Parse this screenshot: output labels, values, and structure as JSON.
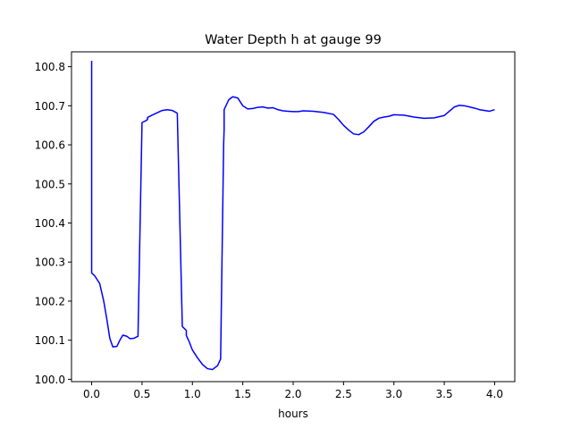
{
  "chart_data": {
    "type": "line",
    "title": "Water Depth h at gauge 99",
    "xlabel": "hours",
    "ylabel": "",
    "xlim": [
      -0.2,
      4.2
    ],
    "ylim": [
      99.994,
      100.838
    ],
    "xticks": [
      0.0,
      0.5,
      1.0,
      1.5,
      2.0,
      2.5,
      3.0,
      3.5,
      4.0
    ],
    "xtick_labels": [
      "0.0",
      "0.5",
      "1.0",
      "1.5",
      "2.0",
      "2.5",
      "3.0",
      "3.5",
      "4.0"
    ],
    "yticks": [
      100.0,
      100.1,
      100.2,
      100.3,
      100.4,
      100.5,
      100.6,
      100.7,
      100.8
    ],
    "ytick_labels": [
      "100.0",
      "100.1",
      "100.2",
      "100.3",
      "100.4",
      "100.5",
      "100.6",
      "100.7",
      "100.8"
    ],
    "grid": false,
    "legend": "none",
    "series": [
      {
        "color": "#0000ff",
        "x": [
          0.0,
          0.0,
          0.03,
          0.08,
          0.12,
          0.15,
          0.18,
          0.21,
          0.25,
          0.28,
          0.31,
          0.35,
          0.38,
          0.42,
          0.46,
          0.5,
          0.54,
          0.555,
          0.555,
          0.6,
          0.65,
          0.7,
          0.75,
          0.8,
          0.85,
          0.9,
          0.94,
          0.94,
          0.97,
          1.0,
          1.05,
          1.1,
          1.15,
          1.2,
          1.25,
          1.28,
          1.31,
          1.315,
          1.315,
          1.36,
          1.4,
          1.45,
          1.5,
          1.55,
          1.6,
          1.65,
          1.7,
          1.75,
          1.8,
          1.85,
          1.9,
          1.95,
          2.0,
          2.05,
          2.1,
          2.2,
          2.3,
          2.4,
          2.45,
          2.5,
          2.55,
          2.6,
          2.65,
          2.7,
          2.75,
          2.8,
          2.85,
          2.9,
          2.95,
          3.0,
          3.1,
          3.2,
          3.3,
          3.4,
          3.5,
          3.55,
          3.6,
          3.65,
          3.7,
          3.75,
          3.8,
          3.85,
          3.9,
          3.95,
          4.0
        ],
        "y": [
          100.815,
          100.272,
          100.265,
          100.245,
          100.2,
          100.155,
          100.105,
          100.083,
          100.084,
          100.1,
          100.113,
          100.11,
          100.104,
          100.105,
          100.11,
          100.657,
          100.662,
          100.665,
          100.67,
          100.676,
          100.682,
          100.688,
          100.69,
          100.688,
          100.681,
          100.135,
          100.125,
          100.112,
          100.095,
          100.075,
          100.055,
          100.038,
          100.027,
          100.025,
          100.035,
          100.052,
          100.6,
          100.64,
          100.69,
          100.715,
          100.723,
          100.72,
          100.7,
          100.692,
          100.693,
          100.696,
          100.697,
          100.694,
          100.695,
          100.69,
          100.687,
          100.686,
          100.685,
          100.685,
          100.687,
          100.686,
          100.683,
          100.678,
          100.665,
          100.65,
          100.638,
          100.628,
          100.626,
          100.633,
          100.646,
          100.66,
          100.668,
          100.671,
          100.673,
          100.677,
          100.676,
          100.671,
          100.668,
          100.669,
          100.675,
          100.686,
          100.697,
          100.701,
          100.7,
          100.697,
          100.694,
          100.69,
          100.688,
          100.686,
          100.69
        ]
      }
    ]
  }
}
